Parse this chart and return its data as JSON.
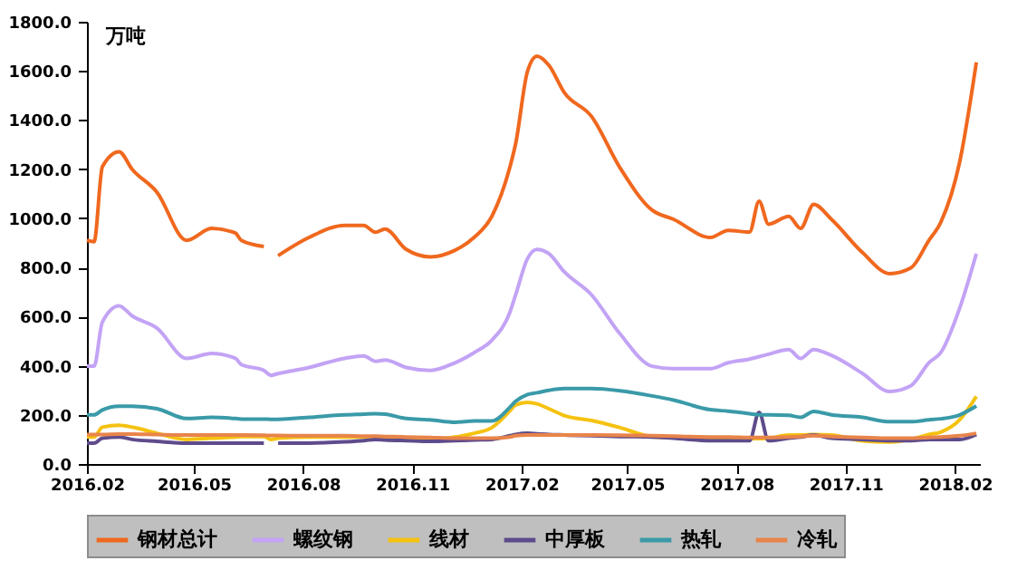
{
  "chart_data": {
    "type": "line",
    "ylabel": "万吨",
    "x": [
      "2016-02-01",
      "2016-02-07",
      "2016-02-14",
      "2016-02-28",
      "2016-03-10",
      "2016-03-31",
      "2016-04-25",
      "2016-05-16",
      "2016-06-05",
      "2016-06-10",
      "2016-06-29",
      "2016-07-05",
      "2016-07-11",
      "2016-08-06",
      "2016-09-05",
      "2016-09-21",
      "2016-10-01",
      "2016-10-09",
      "2016-10-27",
      "2016-11-16",
      "2016-12-07",
      "2016-12-23",
      "2017-01-07",
      "2017-01-22",
      "2017-01-27",
      "2017-02-06",
      "2017-02-14",
      "2017-02-24",
      "2017-03-09",
      "2017-04-01",
      "2017-04-25",
      "2017-05-22",
      "2017-06-09",
      "2017-07-10",
      "2017-07-25",
      "2017-08-12",
      "2017-08-20",
      "2017-08-28",
      "2017-09-14",
      "2017-09-24",
      "2017-10-05",
      "2017-10-20",
      "2017-11-15",
      "2017-12-08",
      "2017-12-26",
      "2018-01-10",
      "2018-01-20",
      "2018-02-05",
      "2018-02-19"
    ],
    "series": [
      {
        "name": "钢材总计",
        "color": "#f0681e",
        "values": [
          910,
          905,
          1210,
          1271,
          1200,
          1106,
          910,
          959,
          940,
          910,
          885,
          null,
          848,
          922,
          971,
          971,
          943,
          956,
          873,
          843,
          870,
          922,
          1008,
          1205,
          1303,
          1598,
          1660,
          1623,
          1512,
          1414,
          1205,
          1033,
          996,
          922,
          951,
          944,
          1070,
          976,
          1008,
          959,
          1057,
          996,
          861,
          775,
          799,
          910,
          983,
          1230,
          1635
        ]
      },
      {
        "name": "螺纹钢",
        "color": "#c3a3f5",
        "values": [
          398,
          398,
          578,
          644,
          603,
          553,
          430,
          450,
          430,
          405,
          381,
          361,
          368,
          393,
          430,
          440,
          418,
          423,
          393,
          381,
          412,
          453,
          504,
          615,
          688,
          836,
          873,
          856,
          782,
          688,
          529,
          398,
          388,
          388,
          412,
          427,
          437,
          447,
          466,
          430,
          466,
          442,
          369,
          295,
          319,
          412,
          453,
          635,
          856
        ]
      },
      {
        "name": "线材",
        "color": "#f5c211",
        "values": [
          110,
          110,
          150,
          158,
          150,
          125,
          100,
          105,
          110,
          112,
          112,
          100,
          105,
          110,
          110,
          110,
          110,
          108,
          100,
          100,
          110,
          125,
          148,
          215,
          240,
          251,
          245,
          225,
          197,
          177,
          148,
          111,
          108,
          100,
          100,
          103,
          103,
          105,
          118,
          118,
          120,
          118,
          94,
          89,
          100,
          120,
          130,
          180,
          275
        ]
      },
      {
        "name": "中厚板",
        "color": "#5e4b8b",
        "values": [
          85,
          85,
          105,
          110,
          100,
          92,
          85,
          85,
          85,
          85,
          85,
          null,
          85,
          85,
          90,
          95,
          100,
          98,
          95,
          92,
          95,
          98,
          100,
          115,
          120,
          125,
          123,
          120,
          118,
          115,
          112,
          110,
          105,
          95,
          95,
          95,
          210,
          95,
          105,
          110,
          118,
          105,
          100,
          95,
          95,
          100,
          100,
          100,
          120
        ]
      },
      {
        "name": "热轧",
        "color": "#3a9aa8",
        "values": [
          200,
          200,
          220,
          235,
          235,
          225,
          185,
          190,
          185,
          183,
          183,
          182,
          182,
          190,
          200,
          203,
          205,
          203,
          185,
          180,
          170,
          175,
          175,
          230,
          255,
          283,
          290,
          300,
          307,
          307,
          298,
          277,
          260,
          221,
          215,
          205,
          200,
          200,
          198,
          190,
          214,
          200,
          190,
          172,
          172,
          180,
          184,
          200,
          236
        ]
      },
      {
        "name": "冷轧",
        "color": "#e8844a",
        "values": [
          120,
          120,
          120,
          122,
          122,
          120,
          118,
          118,
          118,
          118,
          117,
          116,
          116,
          115,
          115,
          113,
          113,
          112,
          110,
          108,
          105,
          105,
          105,
          110,
          115,
          118,
          118,
          118,
          118,
          118,
          117,
          115,
          113,
          110,
          110,
          108,
          108,
          108,
          110,
          112,
          115,
          112,
          108,
          105,
          105,
          108,
          110,
          115,
          125
        ]
      }
    ],
    "xlim": [
      "2016-02-01",
      "2018-02-22"
    ],
    "xticks": [
      {
        "value": "2016-02-01",
        "label": "2016.02"
      },
      {
        "value": "2016-05-01",
        "label": "2016.05"
      },
      {
        "value": "2016-08-01",
        "label": "2016.08"
      },
      {
        "value": "2016-11-01",
        "label": "2016.11"
      },
      {
        "value": "2017-02-01",
        "label": "2017.02"
      },
      {
        "value": "2017-05-01",
        "label": "2017.05"
      },
      {
        "value": "2017-08-01",
        "label": "2017.08"
      },
      {
        "value": "2017-11-01",
        "label": "2017.11"
      },
      {
        "value": "2018-02-01",
        "label": "2018.02"
      }
    ],
    "ylim": [
      0,
      1800
    ],
    "yticks": [
      {
        "value": 0,
        "label": "0.0"
      },
      {
        "value": 200,
        "label": "200.0"
      },
      {
        "value": 400,
        "label": "400.0"
      },
      {
        "value": 600,
        "label": "600.0"
      },
      {
        "value": 800,
        "label": "800.0"
      },
      {
        "value": 1000,
        "label": "1000.0"
      },
      {
        "value": 1200,
        "label": "1200.0"
      },
      {
        "value": 1400,
        "label": "1400.0"
      },
      {
        "value": 1600,
        "label": "1600.0"
      },
      {
        "value": 1800,
        "label": "1800.0"
      }
    ],
    "legend": "bottom"
  }
}
